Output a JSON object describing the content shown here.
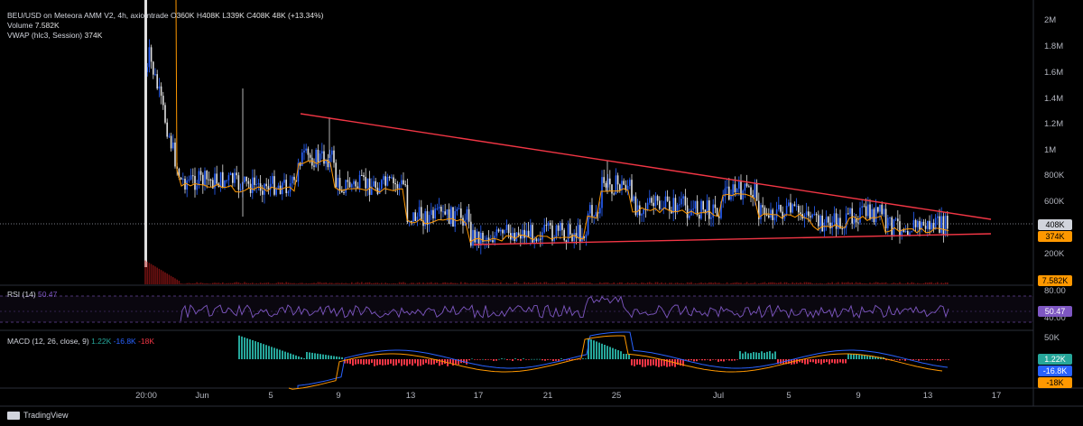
{
  "header": {
    "symbol": "BEU/USD on Meteora AMM V2, 4h, axiomtrade",
    "o_label": "O",
    "o_value": "360K",
    "h_label": "H",
    "h_value": "408K",
    "l_label": "L",
    "l_value": "339K",
    "c_label": "C",
    "c_value": "408K",
    "change": "48K (+13.34%)",
    "volume_label": "Volume",
    "volume_value": "7.582K",
    "vwap_label": "VWAP (hlc3, Session)",
    "vwap_value": "374K"
  },
  "rsi": {
    "label": "RSI (14)",
    "value": "50.47"
  },
  "macd": {
    "label": "MACD (12, 26, close, 9)",
    "v1": "1.22K",
    "v2": "-16.8K",
    "v3": "-18K"
  },
  "price_axis": [
    "2M",
    "1.8M",
    "1.6M",
    "1.4M",
    "1.2M",
    "1M",
    "800K",
    "600K",
    "200K"
  ],
  "rsi_axis": [
    "80.00",
    "40.00"
  ],
  "macd_axis": [
    "50K"
  ],
  "price_tags": {
    "last": "408K",
    "vwap": "374K",
    "volume": "7.582K",
    "rsi": "50.47",
    "macd_a": "1.22K",
    "macd_b": "-16.8K",
    "macd_c": "-18K"
  },
  "time_axis": [
    "20:00",
    "Jun",
    "5",
    "9",
    "13",
    "17",
    "21",
    "25",
    "Jul",
    "5",
    "9",
    "13",
    "17"
  ],
  "branding": "TradingView",
  "colors": {
    "up": "#2962ff",
    "down": "#e0e0e0",
    "trend": "#f23645",
    "vwap": "#ff9800",
    "rsi": "#7e57c2",
    "macd_pos": "#26a69a",
    "macd_neg": "#f23645"
  }
}
